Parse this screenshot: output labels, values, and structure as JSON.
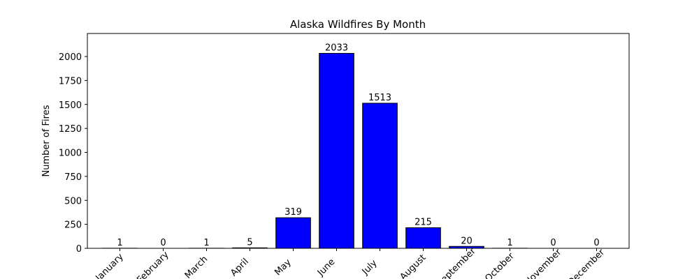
{
  "chart_data": {
    "type": "bar",
    "title": "Alaska Wildfires By Month",
    "y_label": "Number of Fires",
    "categories": [
      "January",
      "February",
      "March",
      "April",
      "May",
      "June",
      "July",
      "August",
      "September",
      "October",
      "November",
      "December"
    ],
    "values": [
      1,
      0,
      1,
      5,
      319,
      2033,
      1513,
      215,
      20,
      1,
      0,
      0
    ],
    "color": "#0000ff",
    "edge_color": "#000000",
    "ylim": [
      0,
      2240
    ],
    "yticks": [
      0,
      250,
      500,
      750,
      1000,
      1250,
      1500,
      1750,
      2000
    ],
    "grid": false
  }
}
